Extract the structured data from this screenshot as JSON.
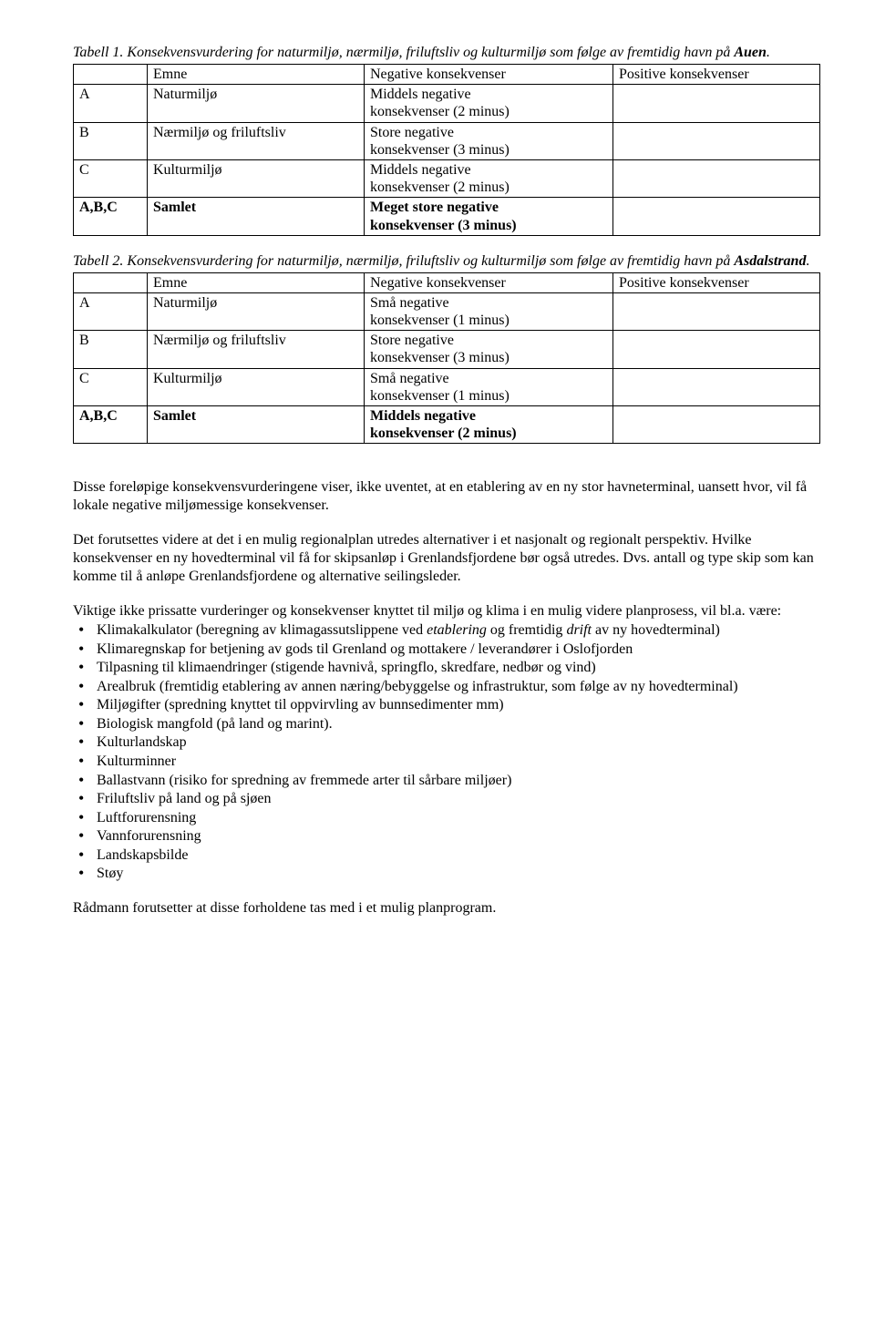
{
  "tables": [
    {
      "caption_pre": "Tabell 1. Konsekvensvurdering for naturmiljø, nærmiljø, friluftsliv og kulturmiljø som følge av fremtidig havn på ",
      "caption_bold": "Auen",
      "caption_post": ".",
      "header": {
        "c1": "",
        "c2": "Emne",
        "c3": "Negative konsekvenser",
        "c4": "Positive konsekvenser"
      },
      "rows": [
        {
          "c1": "A",
          "c2": "Naturmiljø",
          "c3": "Middels negative\nkonsekvenser (2 minus)",
          "c4": "",
          "bold": false
        },
        {
          "c1": "B",
          "c2": "Nærmiljø og friluftsliv",
          "c3": "Store negative\nkonsekvenser (3 minus)",
          "c4": "",
          "bold": false
        },
        {
          "c1": "C",
          "c2": "Kulturmiljø",
          "c3": "Middels negative\nkonsekvenser (2 minus)",
          "c4": "",
          "bold": false
        },
        {
          "c1": "A,B,C",
          "c2": "Samlet",
          "c3": "Meget store negative\nkonsekvenser (3 minus)",
          "c4": "",
          "bold": true
        }
      ]
    },
    {
      "caption_pre": "Tabell 2. Konsekvensvurdering for naturmiljø, nærmiljø, friluftsliv og kulturmiljø som følge av fremtidig havn på ",
      "caption_bold": "Asdalstrand",
      "caption_post": ".",
      "header": {
        "c1": "",
        "c2": "Emne",
        "c3": "Negative konsekvenser",
        "c4": "Positive konsekvenser"
      },
      "rows": [
        {
          "c1": "A",
          "c2": "Naturmiljø",
          "c3": "Små negative\nkonsekvenser (1 minus)",
          "c4": "",
          "bold": false
        },
        {
          "c1": "B",
          "c2": "Nærmiljø og friluftsliv",
          "c3": "Store negative\nkonsekvenser (3 minus)",
          "c4": "",
          "bold": false
        },
        {
          "c1": "C",
          "c2": "Kulturmiljø",
          "c3": "Små negative\nkonsekvenser (1 minus)",
          "c4": "",
          "bold": false
        },
        {
          "c1": "A,B,C",
          "c2": "Samlet",
          "c3": "Middels negative\nkonsekvenser (2 minus)",
          "c4": "",
          "bold": true
        }
      ]
    }
  ],
  "paragraphs": {
    "p1": "Disse foreløpige konsekvensvurderingene viser, ikke uventet, at en etablering av en ny stor havneterminal, uansett hvor, vil få lokale negative miljømessige konsekvenser.",
    "p2": "Det forutsettes videre at det i en mulig regionalplan utredes alternativer i et nasjonalt og regionalt perspektiv. Hvilke konsekvenser en ny hovedterminal vil få for skipsanløp i Grenlandsfjordene bør også utredes. Dvs. antall og type skip som kan komme til å anløpe Grenlandsfjordene og alternative seilingsleder.",
    "p3": "Viktige ikke prissatte vurderinger og konsekvenser knyttet til miljø og klima i en mulig videre planprosess, vil bl.a. være:",
    "p_end": "Rådmann forutsetter at disse forholdene tas med i et mulig planprogram."
  },
  "bullets": [
    {
      "pre": "Klimakalkulator (beregning av klimagassutslippene ved ",
      "ital1": "etablering",
      "mid": " og fremtidig ",
      "ital2": "drift",
      "post": " av ny hovedterminal)"
    },
    {
      "text": "Klimaregnskap for betjening av gods til Grenland og mottakere / leverandører i Oslofjorden"
    },
    {
      "text": "Tilpasning til klimaendringer (stigende havnivå, springflo, skredfare, nedbør og vind)"
    },
    {
      "text": "Arealbruk (fremtidig etablering av annen næring/bebyggelse og infrastruktur, som følge av ny hovedterminal)"
    },
    {
      "text": "Miljøgifter (spredning knyttet til oppvirvling av bunnsedimenter mm)"
    },
    {
      "text": "Biologisk mangfold (på land og marint)."
    },
    {
      "text": "Kulturlandskap"
    },
    {
      "text": "Kulturminner"
    },
    {
      "text": "Ballastvann (risiko for spredning av fremmede arter til sårbare miljøer)"
    },
    {
      "text": "Friluftsliv på land og på sjøen"
    },
    {
      "text": "Luftforurensning"
    },
    {
      "text": "Vannforurensning"
    },
    {
      "text": "Landskapsbilde"
    },
    {
      "text": "Støy"
    }
  ]
}
